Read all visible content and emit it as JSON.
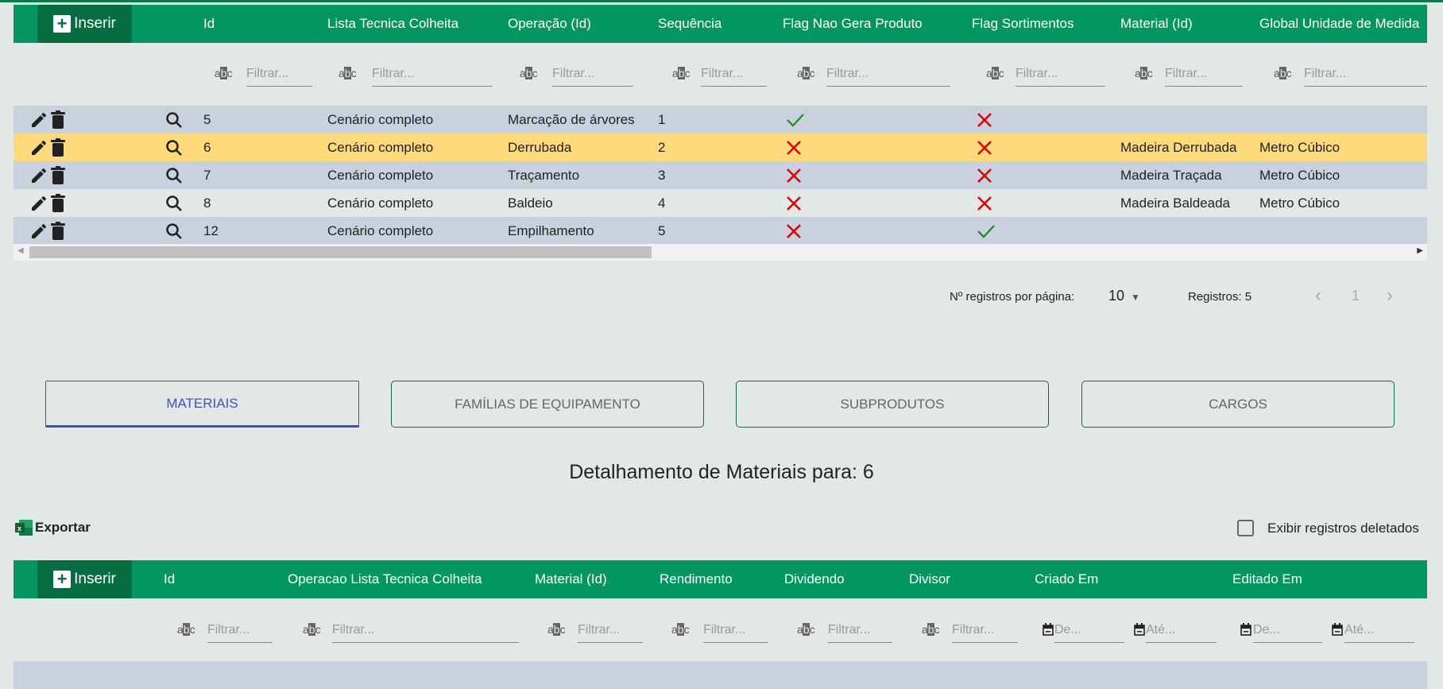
{
  "colors": {
    "header": "#039660",
    "insert": "#066d43",
    "row_alt": "#c9d1de",
    "row_selected": "#ffd97a",
    "check": "#1a8a1a",
    "cross": "#e00000",
    "tab_active": "#3f51b5"
  },
  "top_table": {
    "insert_label": "Inserir",
    "columns": [
      "Id",
      "Lista Tecnica Colheita",
      "Operação (Id)",
      "Sequência",
      "Flag Nao Gera Produto",
      "Flag Sortimentos",
      "Material (Id)",
      "Global Unidade de Medida"
    ],
    "filter_placeholder": "Filtrar...",
    "rows": [
      {
        "id": "5",
        "lista": "Cenário completo",
        "operacao": "Marcação de árvores",
        "seq": "1",
        "nao_gera": true,
        "sortimentos": false,
        "material": "",
        "unidade": ""
      },
      {
        "id": "6",
        "lista": "Cenário completo",
        "operacao": "Derrubada",
        "seq": "2",
        "nao_gera": false,
        "sortimentos": false,
        "material": "Madeira Derrubada",
        "unidade": "Metro Cúbico",
        "selected": true
      },
      {
        "id": "7",
        "lista": "Cenário completo",
        "operacao": "Traçamento",
        "seq": "3",
        "nao_gera": false,
        "sortimentos": false,
        "material": "Madeira Traçada",
        "unidade": "Metro Cúbico"
      },
      {
        "id": "8",
        "lista": "Cenário completo",
        "operacao": "Baldeio",
        "seq": "4",
        "nao_gera": false,
        "sortimentos": false,
        "material": "Madeira Baldeada",
        "unidade": "Metro Cúbico"
      },
      {
        "id": "12",
        "lista": "Cenário completo",
        "operacao": "Empilhamento",
        "seq": "5",
        "nao_gera": false,
        "sortimentos": true,
        "material": "",
        "unidade": ""
      }
    ]
  },
  "pagination": {
    "per_page_label": "Nº registros por página:",
    "per_page": "10",
    "records": "Registros: 5",
    "page": "1"
  },
  "tabs": [
    {
      "label": "MATERIAIS",
      "active": true
    },
    {
      "label": "FAMÍLIAS DE EQUIPAMENTO"
    },
    {
      "label": "SUBPRODUTOS"
    },
    {
      "label": "CARGOS"
    }
  ],
  "detail": {
    "title": "Detalhamento de Materiais para: 6",
    "export_label": "Exportar",
    "show_deleted_label": "Exibir registros deletados",
    "show_deleted": false
  },
  "bottom_table": {
    "insert_label": "Inserir",
    "columns": [
      "Id",
      "Operacao Lista Tecnica Colheita",
      "Material (Id)",
      "Rendimento",
      "Dividendo",
      "Divisor",
      "Criado Em",
      "Editado Em"
    ],
    "filter_placeholder": "Filtrar...",
    "date_from": "De...",
    "date_to": "Até..."
  }
}
